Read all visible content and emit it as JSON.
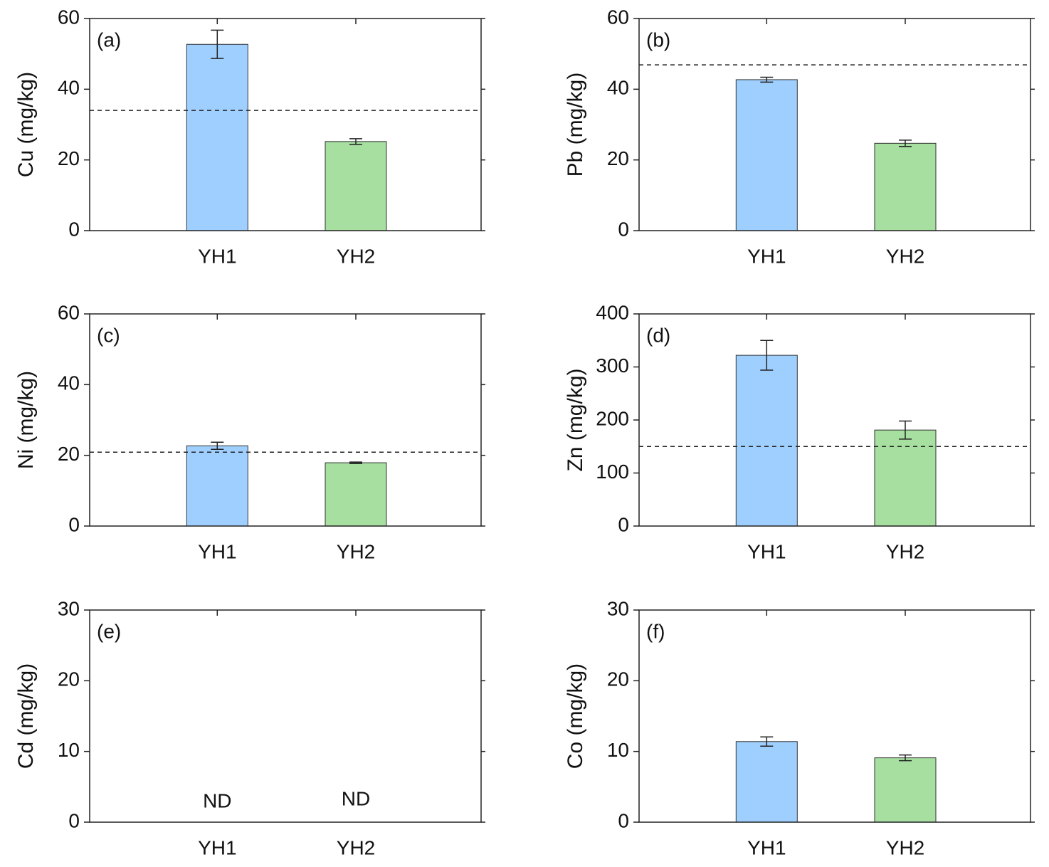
{
  "chart_data": [
    {
      "type": "bar",
      "panel": "(a)",
      "y_label": "Cu (mg/kg)",
      "categories": [
        "YH1",
        "YH2"
      ],
      "values": [
        52.7,
        25.2
      ],
      "errors": [
        4.0,
        0.8
      ],
      "colors": [
        "#9fcfff",
        "#a6dfa0"
      ],
      "ylim": [
        0,
        60
      ],
      "yticks": [
        0,
        20,
        40,
        60
      ],
      "reference_line": 34
    },
    {
      "type": "bar",
      "panel": "(b)",
      "y_label": "Pb (mg/kg)",
      "categories": [
        "YH1",
        "YH2"
      ],
      "values": [
        42.7,
        24.7
      ],
      "errors": [
        0.7,
        0.9
      ],
      "colors": [
        "#9fcfff",
        "#a6dfa0"
      ],
      "ylim": [
        0,
        60
      ],
      "yticks": [
        0,
        20,
        40,
        60
      ],
      "reference_line": 46.9
    },
    {
      "type": "bar",
      "panel": "(c)",
      "y_label": "Ni (mg/kg)",
      "categories": [
        "YH1",
        "YH2"
      ],
      "values": [
        22.7,
        17.9
      ],
      "errors": [
        1.0,
        0.2
      ],
      "colors": [
        "#9fcfff",
        "#a6dfa0"
      ],
      "ylim": [
        0,
        60
      ],
      "yticks": [
        0,
        20,
        40,
        60
      ],
      "reference_line": 20.9
    },
    {
      "type": "bar",
      "panel": "(d)",
      "y_label": "Zn (mg/kg)",
      "categories": [
        "YH1",
        "YH2"
      ],
      "values": [
        322,
        181
      ],
      "errors": [
        28,
        17
      ],
      "colors": [
        "#9fcfff",
        "#a6dfa0"
      ],
      "ylim": [
        0,
        400
      ],
      "yticks": [
        0,
        100,
        200,
        300,
        400
      ],
      "reference_line": 150
    },
    {
      "type": "bar",
      "panel": "(e)",
      "y_label": "Cd (mg/kg)",
      "categories": [
        "YH1",
        "YH2"
      ],
      "values": [
        null,
        null
      ],
      "value_labels": [
        "ND",
        "ND"
      ],
      "errors": [
        null,
        null
      ],
      "colors": [
        "#9fcfff",
        "#a6dfa0"
      ],
      "ylim": [
        0,
        30
      ],
      "yticks": [
        0,
        10,
        20,
        30
      ]
    },
    {
      "type": "bar",
      "panel": "(f)",
      "y_label": "Co (mg/kg)",
      "categories": [
        "YH1",
        "YH2"
      ],
      "values": [
        11.4,
        9.1
      ],
      "errors": [
        0.65,
        0.4
      ],
      "colors": [
        "#9fcfff",
        "#a6dfa0"
      ],
      "ylim": [
        0,
        30
      ],
      "yticks": [
        0,
        10,
        20,
        30
      ]
    }
  ]
}
